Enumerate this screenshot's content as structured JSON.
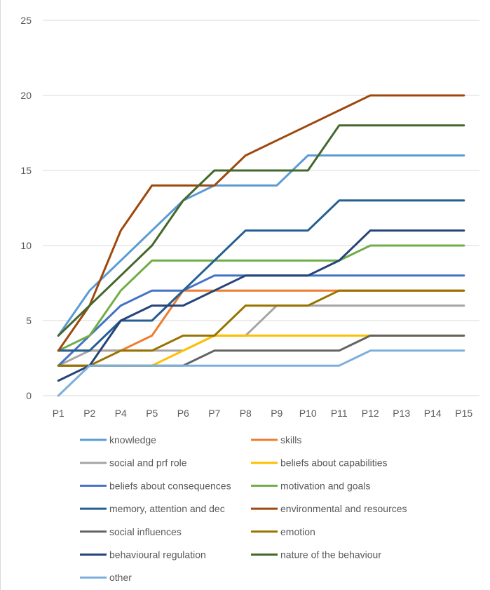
{
  "chart_data": {
    "type": "line",
    "title": "",
    "xlabel": "",
    "ylabel": "",
    "categories": [
      "P1",
      "P2",
      "P4",
      "P5",
      "P6",
      "P7",
      "P8",
      "P9",
      "P10",
      "P11",
      "P12",
      "P13",
      "P14",
      "P15"
    ],
    "ylim": [
      0,
      25
    ],
    "yticks": [
      0,
      5,
      10,
      15,
      20,
      25
    ],
    "grid": true,
    "legend_position": "bottom",
    "series": [
      {
        "name": "knowledge",
        "color": "#5b9bd5",
        "values": [
          4,
          7,
          9,
          11,
          13,
          14,
          14,
          14,
          16,
          16,
          16,
          16,
          16,
          16
        ]
      },
      {
        "name": "skills",
        "color": "#ed7d31",
        "values": [
          3,
          3,
          3,
          4,
          7,
          7,
          7,
          7,
          7,
          7,
          7,
          7,
          7,
          7
        ]
      },
      {
        "name": "social and prf role",
        "color": "#a5a5a5",
        "values": [
          2,
          3,
          3,
          3,
          3,
          4,
          4,
          6,
          6,
          6,
          6,
          6,
          6,
          6
        ]
      },
      {
        "name": "beliefs about capabilities",
        "color": "#ffc000",
        "values": [
          2,
          2,
          2,
          2,
          3,
          4,
          4,
          4,
          4,
          4,
          4,
          4,
          4,
          4
        ]
      },
      {
        "name": "beliefs about consequences",
        "color": "#4472c4",
        "values": [
          2,
          4,
          6,
          7,
          7,
          8,
          8,
          8,
          8,
          8,
          8,
          8,
          8,
          8
        ]
      },
      {
        "name": "motivation and goals",
        "color": "#70ad47",
        "values": [
          3,
          4,
          7,
          9,
          9,
          9,
          9,
          9,
          9,
          9,
          10,
          10,
          10,
          10
        ]
      },
      {
        "name": "memory, attention and dec",
        "color": "#255e91",
        "values": [
          3,
          3,
          5,
          5,
          7,
          9,
          11,
          11,
          11,
          13,
          13,
          13,
          13,
          13
        ]
      },
      {
        "name": "environmental and resources",
        "color": "#9e480e",
        "values": [
          3,
          6,
          11,
          14,
          14,
          14,
          16,
          17,
          18,
          19,
          20,
          20,
          20,
          20
        ]
      },
      {
        "name": "social influences",
        "color": "#636363",
        "values": [
          2,
          2,
          2,
          2,
          2,
          3,
          3,
          3,
          3,
          3,
          4,
          4,
          4,
          4
        ]
      },
      {
        "name": "emotion",
        "color": "#997300",
        "values": [
          2,
          2,
          3,
          3,
          4,
          4,
          6,
          6,
          6,
          7,
          7,
          7,
          7,
          7
        ]
      },
      {
        "name": "behavioural regulation",
        "color": "#264478",
        "values": [
          1,
          2,
          5,
          6,
          6,
          7,
          8,
          8,
          8,
          9,
          11,
          11,
          11,
          11
        ]
      },
      {
        "name": "nature of the behaviour",
        "color": "#43682b",
        "values": [
          4,
          6,
          8,
          10,
          13,
          15,
          15,
          15,
          15,
          18,
          18,
          18,
          18,
          18
        ]
      },
      {
        "name": "other",
        "color": "#7cafdd",
        "values": [
          0,
          2,
          2,
          2,
          2,
          2,
          2,
          2,
          2,
          2,
          3,
          3,
          3,
          3
        ]
      }
    ]
  }
}
